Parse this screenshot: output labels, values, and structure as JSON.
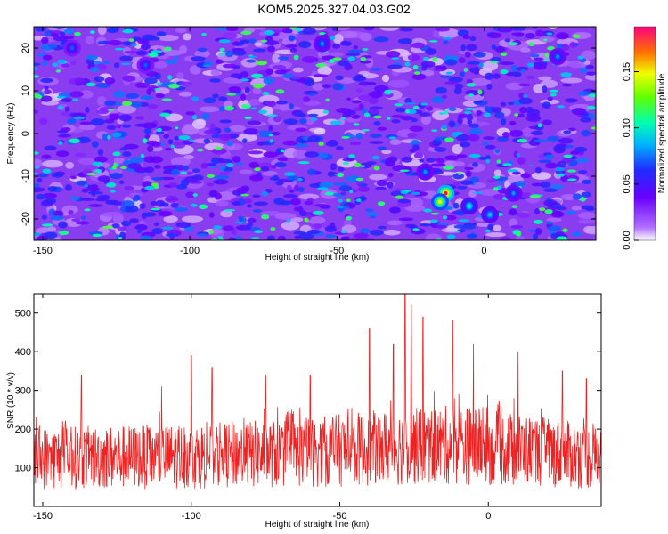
{
  "title": "KOM5.2025.327.04.03.G02",
  "chart_data": [
    {
      "type": "heatmap",
      "xlabel": "Height of straight line (km)",
      "ylabel": "Frequency (Hz)",
      "xlim": [
        -153,
        38
      ],
      "ylim": [
        -25,
        25
      ],
      "xticks": [
        -150,
        -100,
        -50,
        0
      ],
      "yticks": [
        -20,
        -10,
        0,
        10,
        20
      ],
      "xtick_labels": [
        "-150",
        "-100",
        "-50",
        "0"
      ],
      "ytick_labels": [
        "-20",
        "-10",
        "0",
        "10",
        "20"
      ],
      "colorbar": {
        "label": "Normalized spectral amplitude",
        "range": [
          0.0,
          0.19
        ],
        "ticks": [
          0.0,
          0.05,
          0.1,
          0.15
        ],
        "tick_labels": [
          "0.00",
          "0.05",
          "0.10",
          "0.15"
        ],
        "colormap": "rainbow-white-to-magenta"
      },
      "hotspots": [
        {
          "x": -13,
          "y": -14,
          "v": 0.19
        },
        {
          "x": -15,
          "y": -16,
          "v": 0.15
        },
        {
          "x": -5,
          "y": -17,
          "v": 0.1
        },
        {
          "x": 10,
          "y": -14,
          "v": 0.08
        },
        {
          "x": 2,
          "y": -19,
          "v": 0.09
        },
        {
          "x": 25,
          "y": 18,
          "v": 0.08
        },
        {
          "x": -115,
          "y": 16,
          "v": 0.07
        },
        {
          "x": -140,
          "y": 20,
          "v": 0.07
        },
        {
          "x": -55,
          "y": 21,
          "v": 0.08
        },
        {
          "x": -20,
          "y": -9,
          "v": 0.08
        }
      ]
    },
    {
      "type": "line",
      "xlabel": "Height of straight line (km)",
      "ylabel": "SNR (10 * v/v)",
      "xlim": [
        -153,
        38
      ],
      "ylim": [
        0,
        550
      ],
      "xticks": [
        -150,
        -100,
        -50,
        0
      ],
      "yticks": [
        100,
        200,
        300,
        400,
        500
      ],
      "xtick_labels": [
        "-150",
        "-100",
        "-50",
        "0"
      ],
      "ytick_labels": [
        "100",
        "200",
        "300",
        "400",
        "500"
      ],
      "series": [
        {
          "color": "#ee2222",
          "baseline_trend": [
            {
              "x": -153,
              "y": 125
            },
            {
              "x": -100,
              "y": 130
            },
            {
              "x": -60,
              "y": 140
            },
            {
              "x": -40,
              "y": 150
            },
            {
              "x": -10,
              "y": 160
            },
            {
              "x": 20,
              "y": 140
            },
            {
              "x": 38,
              "y": 125
            }
          ],
          "peaks": [
            {
              "x": -153,
              "y": 215
            },
            {
              "x": -137,
              "y": 340
            },
            {
              "x": -110,
              "y": 310
            },
            {
              "x": -100,
              "y": 390
            },
            {
              "x": -93,
              "y": 360
            },
            {
              "x": -75,
              "y": 340
            },
            {
              "x": -60,
              "y": 340
            },
            {
              "x": -40,
              "y": 460
            },
            {
              "x": -32,
              "y": 420
            },
            {
              "x": -28,
              "y": 550
            },
            {
              "x": -26,
              "y": 520
            },
            {
              "x": -22,
              "y": 490
            },
            {
              "x": -12,
              "y": 480
            },
            {
              "x": -5,
              "y": 420
            },
            {
              "x": 10,
              "y": 400
            },
            {
              "x": 25,
              "y": 350
            },
            {
              "x": 33,
              "y": 330
            }
          ]
        }
      ]
    }
  ]
}
